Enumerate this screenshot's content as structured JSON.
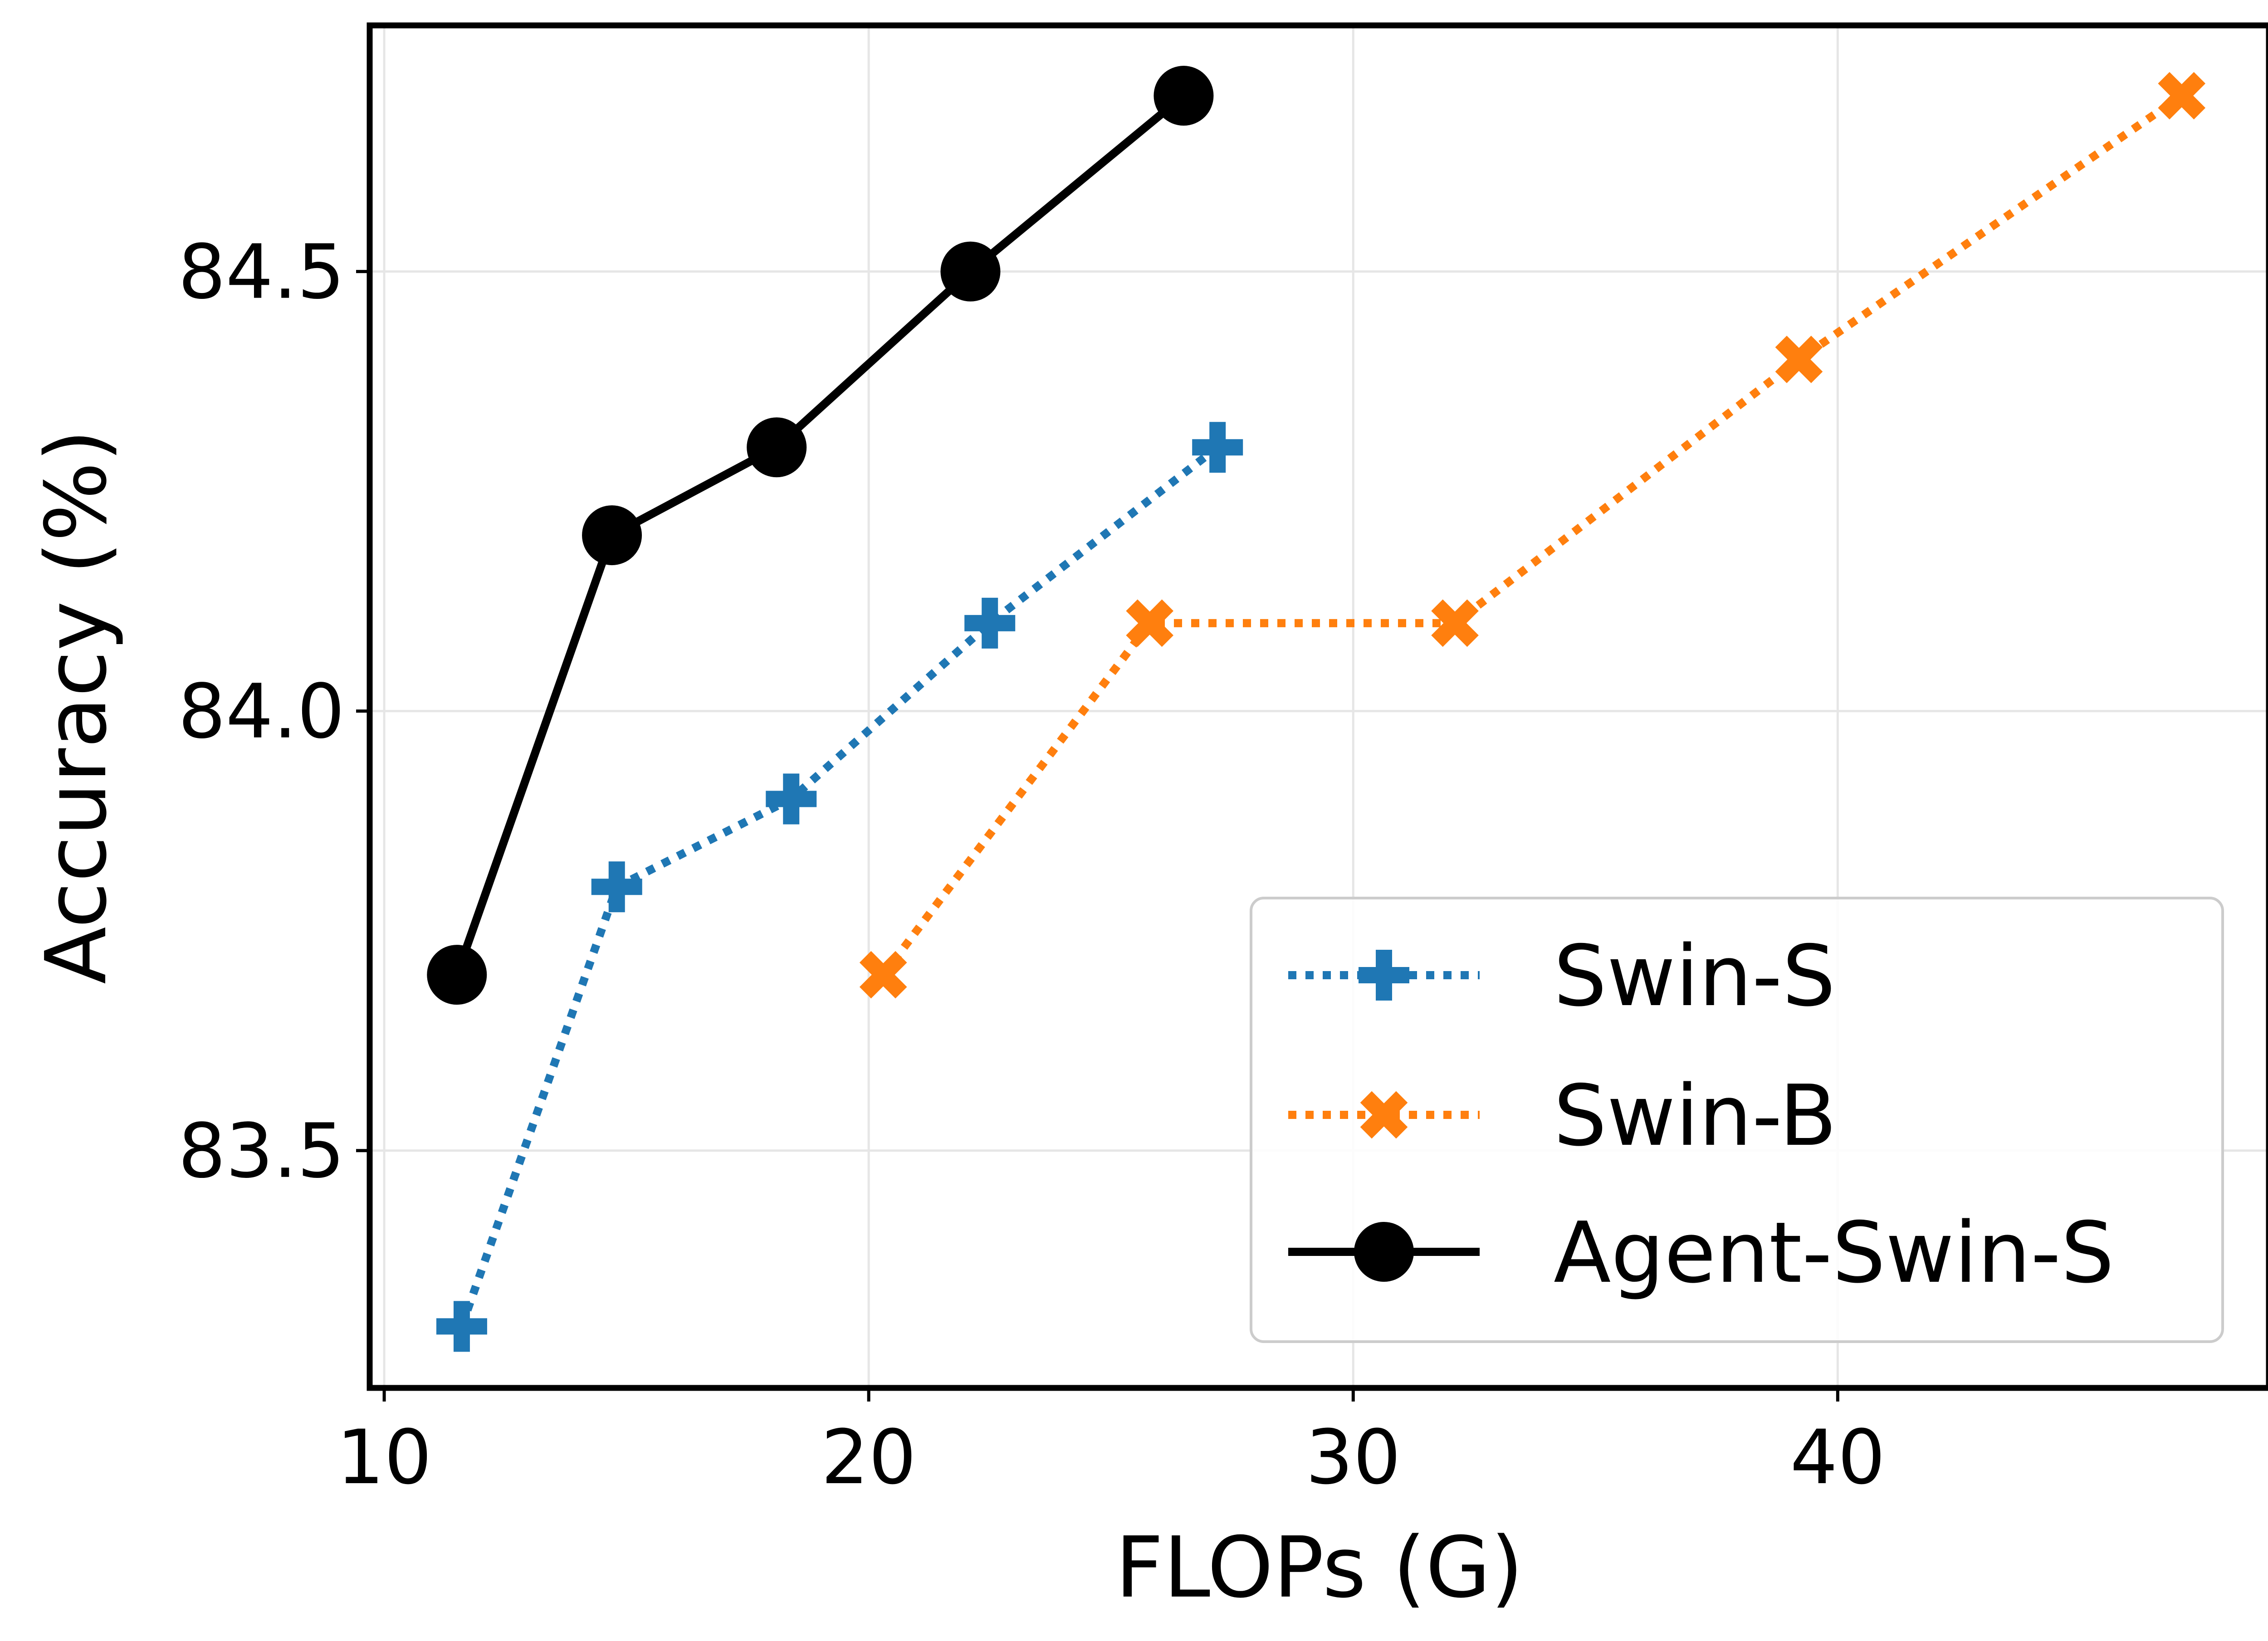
{
  "chart_data": {
    "type": "line",
    "title": "",
    "xlabel": "FLOPs (G)",
    "ylabel": "Accuracy (%)",
    "xlim": [
      9.7,
      48.9
    ],
    "ylim": [
      83.23,
      84.78
    ],
    "xticks": [
      10,
      20,
      30,
      40
    ],
    "yticks": [
      83.5,
      84.0,
      84.5
    ],
    "xtick_labels": [
      "10",
      "20",
      "30",
      "40"
    ],
    "ytick_labels": [
      "83.5",
      "84.0",
      "84.5"
    ],
    "grid": true,
    "legend_position": "lower-right",
    "series": [
      {
        "name": "Swin-S",
        "color": "#1f77b4",
        "linestyle": "dotted",
        "marker": "plus",
        "x": [
          11.6,
          14.8,
          18.4,
          22.5,
          27.2
        ],
        "y": [
          83.3,
          83.8,
          83.9,
          84.1,
          84.3
        ]
      },
      {
        "name": "Swin-B",
        "color": "#ff7f0e",
        "linestyle": "dotted",
        "marker": "x",
        "x": [
          20.3,
          25.8,
          32.1,
          39.2,
          47.1
        ],
        "y": [
          83.7,
          84.1,
          84.1,
          84.4,
          84.7
        ]
      },
      {
        "name": "Agent-Swin-S",
        "color": "#000000",
        "linestyle": "solid",
        "marker": "circle",
        "x": [
          11.5,
          14.7,
          18.1,
          22.1,
          26.5
        ],
        "y": [
          83.7,
          84.2,
          84.3,
          84.5,
          84.7
        ]
      }
    ]
  }
}
